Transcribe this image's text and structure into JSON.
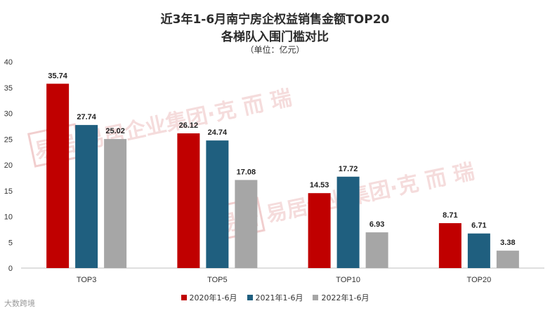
{
  "title": "近3年1-6月南宁房企权益销售金额TOP20",
  "subtitle": "各梯队入围门槛对比",
  "unit": "（单位：亿元）",
  "watermark": {
    "seal": "易居",
    "text": "易居企业集团·克 而 瑞"
  },
  "footer": "大数跨境",
  "colors": {
    "s2020": "#C00000",
    "s2021": "#1F5F7F",
    "s2022": "#A6A6A6"
  },
  "chart_data": {
    "type": "bar",
    "categories": [
      "TOP3",
      "TOP5",
      "TOP10",
      "TOP20"
    ],
    "series": [
      {
        "name": "2020年1-6月",
        "values": [
          35.74,
          26.12,
          14.53,
          8.71
        ]
      },
      {
        "name": "2021年1-6月",
        "values": [
          27.74,
          24.74,
          17.72,
          6.71
        ]
      },
      {
        "name": "2022年1-6月",
        "values": [
          25.02,
          17.08,
          6.93,
          3.38
        ]
      }
    ],
    "ylim": [
      0,
      40
    ],
    "yticks": [
      0,
      5,
      10,
      15,
      20,
      25,
      30,
      35,
      40
    ],
    "grid": false,
    "legend": "bottom",
    "data_labels": [
      "35.74",
      "26.12",
      "14.53",
      "8.71",
      "27.74",
      "24.74",
      "17.72",
      "6.71",
      "25.02",
      "17.08",
      "6.93",
      "3.38"
    ]
  }
}
